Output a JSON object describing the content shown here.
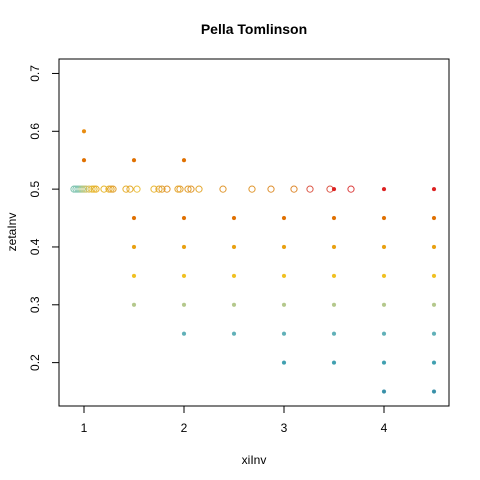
{
  "chart_data": {
    "type": "scatter",
    "title": "Pella Tomlinson",
    "xlabel": "xiInv",
    "ylabel": "zetaInv",
    "xlim": [
      0.75,
      4.65
    ],
    "ylim": [
      0.125,
      0.725
    ],
    "xticks": [
      1,
      2,
      3,
      4
    ],
    "yticks": [
      0.2,
      0.3,
      0.4,
      0.5,
      0.6,
      0.7
    ],
    "grid": false,
    "legend": "none",
    "series": [
      {
        "marker": "open-circle",
        "points": [
          [
            0.9,
            0.5,
            "#7fc4b0"
          ],
          [
            0.92,
            0.5,
            "#7fc4b0"
          ],
          [
            0.94,
            0.5,
            "#7fc4b0"
          ],
          [
            0.96,
            0.5,
            "#8cc6aa"
          ],
          [
            0.98,
            0.5,
            "#a6c88a"
          ],
          [
            1.0,
            0.5,
            "#b6c880"
          ],
          [
            1.02,
            0.5,
            "#c8c470"
          ],
          [
            1.05,
            0.5,
            "#d8c060"
          ],
          [
            1.08,
            0.5,
            "#e6bc3e"
          ],
          [
            1.1,
            0.5,
            "#e8b82a"
          ],
          [
            1.12,
            0.5,
            "#e8b02a"
          ],
          [
            1.2,
            0.5,
            "#e6b830"
          ],
          [
            1.25,
            0.5,
            "#e6b030"
          ],
          [
            1.27,
            0.5,
            "#e4a830"
          ],
          [
            1.29,
            0.5,
            "#e2a030"
          ],
          [
            1.42,
            0.5,
            "#e6b030"
          ],
          [
            1.46,
            0.5,
            "#e4a830"
          ],
          [
            1.53,
            0.5,
            "#eac040"
          ],
          [
            1.7,
            0.5,
            "#e8b838"
          ],
          [
            1.75,
            0.5,
            "#e4a830"
          ],
          [
            1.78,
            0.5,
            "#e2a030"
          ],
          [
            1.83,
            0.5,
            "#e09830"
          ],
          [
            1.94,
            0.5,
            "#e4a830"
          ],
          [
            1.96,
            0.5,
            "#e4a030"
          ],
          [
            2.04,
            0.5,
            "#e2a030"
          ],
          [
            2.07,
            0.5,
            "#e09830"
          ],
          [
            2.15,
            0.5,
            "#e4a830"
          ],
          [
            2.39,
            0.5,
            "#e09830"
          ],
          [
            2.68,
            0.5,
            "#e09830"
          ],
          [
            2.87,
            0.5,
            "#de9030"
          ],
          [
            3.1,
            0.5,
            "#de8a30"
          ],
          [
            3.26,
            0.5,
            "#dc5848"
          ],
          [
            3.46,
            0.5,
            "#dc5848"
          ],
          [
            3.67,
            0.5,
            "#dc4040"
          ]
        ]
      },
      {
        "marker": "filled-circle",
        "points": [
          [
            1.0,
            0.6,
            "#e88c10"
          ],
          [
            1.0,
            0.55,
            "#e07000"
          ],
          [
            1.5,
            0.55,
            "#e07000"
          ],
          [
            2.0,
            0.55,
            "#e07000"
          ],
          [
            1.5,
            0.45,
            "#e07000"
          ],
          [
            1.5,
            0.4,
            "#e8a010"
          ],
          [
            1.5,
            0.35,
            "#f0c020"
          ],
          [
            1.5,
            0.3,
            "#b4c88c"
          ],
          [
            2.0,
            0.45,
            "#e07000"
          ],
          [
            2.0,
            0.4,
            "#e8a010"
          ],
          [
            2.0,
            0.35,
            "#f0c020"
          ],
          [
            2.0,
            0.3,
            "#b4c88c"
          ],
          [
            2.0,
            0.25,
            "#60b0b8"
          ],
          [
            2.5,
            0.45,
            "#e07000"
          ],
          [
            2.5,
            0.4,
            "#e8a010"
          ],
          [
            2.5,
            0.35,
            "#f0c020"
          ],
          [
            2.5,
            0.3,
            "#b4c88c"
          ],
          [
            2.5,
            0.25,
            "#60b0b8"
          ],
          [
            3.0,
            0.45,
            "#e07000"
          ],
          [
            3.0,
            0.4,
            "#e8a010"
          ],
          [
            3.0,
            0.35,
            "#f0c020"
          ],
          [
            3.0,
            0.3,
            "#b4c88c"
          ],
          [
            3.0,
            0.25,
            "#60b0b8"
          ],
          [
            3.0,
            0.2,
            "#40a0b0"
          ],
          [
            3.5,
            0.5,
            "#dc2020"
          ],
          [
            3.5,
            0.45,
            "#e07000"
          ],
          [
            3.5,
            0.4,
            "#e8a010"
          ],
          [
            3.5,
            0.35,
            "#f0c020"
          ],
          [
            3.5,
            0.3,
            "#b4c88c"
          ],
          [
            3.5,
            0.25,
            "#60b0b8"
          ],
          [
            3.5,
            0.2,
            "#40a0b0"
          ],
          [
            4.0,
            0.5,
            "#dc2020"
          ],
          [
            4.0,
            0.45,
            "#e07000"
          ],
          [
            4.0,
            0.4,
            "#e8a010"
          ],
          [
            4.0,
            0.35,
            "#f0c020"
          ],
          [
            4.0,
            0.3,
            "#b4c88c"
          ],
          [
            4.0,
            0.25,
            "#60b0b8"
          ],
          [
            4.0,
            0.2,
            "#40a0b0"
          ],
          [
            4.0,
            0.15,
            "#3890a8"
          ],
          [
            4.5,
            0.5,
            "#dc2020"
          ],
          [
            4.5,
            0.45,
            "#e07000"
          ],
          [
            4.5,
            0.4,
            "#e8a010"
          ],
          [
            4.5,
            0.35,
            "#f0c020"
          ],
          [
            4.5,
            0.3,
            "#b4c88c"
          ],
          [
            4.5,
            0.25,
            "#60b0b8"
          ],
          [
            4.5,
            0.2,
            "#40a0b0"
          ],
          [
            4.5,
            0.15,
            "#3890a8"
          ]
        ]
      }
    ]
  }
}
